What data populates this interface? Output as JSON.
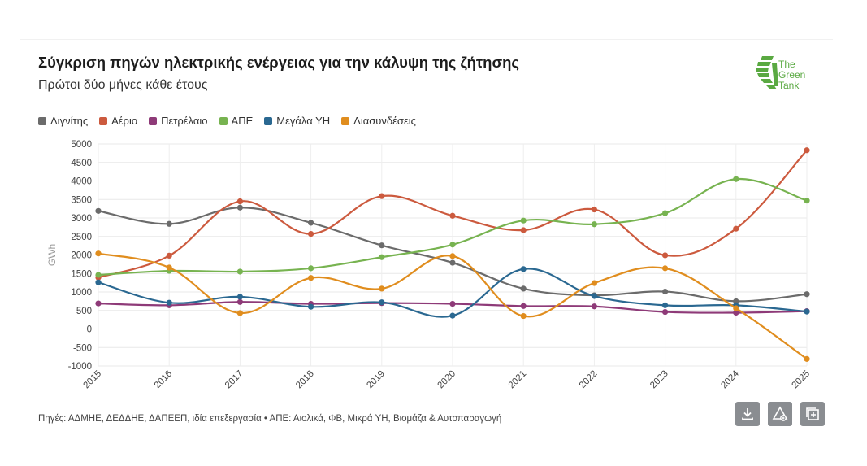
{
  "title": "Σύγκριση πηγών ηλεκτρικής ενέργειας για την κάλυψη της ζήτησης",
  "subtitle": "Πρώτοι δύο μήνες κάθε έτους",
  "logo_text": [
    "The",
    "Green",
    "Tank"
  ],
  "footer": "Πηγές: ΑΔΜΗΕ, ΔΕΔΔΗΕ, ΔΑΠΕΕΠ, ιδία επεξεργασία • ΑΠΕ: Αιολικά, ΦΒ, Μικρά ΥΗ, Βιομάζα & Αυτοπαραγωγή",
  "toolbar": {
    "download_icon": "download-icon",
    "share_icon": "share-icon",
    "expand_icon": "expand-icon"
  },
  "chart_data": {
    "type": "line",
    "ylabel": "GWh",
    "xlabel": "",
    "ylim": [
      -1000,
      5000
    ],
    "yticks": [
      -1000,
      -500,
      0,
      500,
      1000,
      1500,
      2000,
      2500,
      3000,
      3500,
      4000,
      4500,
      5000
    ],
    "grid": true,
    "legend_position": "top-left",
    "categories": [
      "2015",
      "2016",
      "2017",
      "2018",
      "2019",
      "2020",
      "2021",
      "2022",
      "2023",
      "2024",
      "2025"
    ],
    "series": [
      {
        "name": "Λιγνίτης",
        "color": "#6b6b6b",
        "values": [
          3190,
          2840,
          3280,
          2870,
          2260,
          1790,
          1090,
          910,
          1010,
          750,
          940
        ]
      },
      {
        "name": "Αέριο",
        "color": "#cc5a3e",
        "values": [
          1390,
          1980,
          3450,
          2570,
          3590,
          3060,
          2670,
          3230,
          1990,
          2710,
          4830
        ]
      },
      {
        "name": "Πετρέλαιο",
        "color": "#8e3a78",
        "values": [
          690,
          640,
          730,
          680,
          700,
          680,
          620,
          610,
          460,
          440,
          480
        ]
      },
      {
        "name": "ΑΠΕ",
        "color": "#77b350",
        "values": [
          1460,
          1570,
          1550,
          1640,
          1940,
          2280,
          2930,
          2830,
          3130,
          4050,
          3470
        ]
      },
      {
        "name": "Μεγάλα ΥΗ",
        "color": "#2a6891",
        "values": [
          1260,
          710,
          870,
          600,
          720,
          360,
          1620,
          890,
          640,
          640,
          470
        ]
      },
      {
        "name": "Διασυνδέσεις",
        "color": "#e08d1e",
        "values": [
          2040,
          1660,
          430,
          1380,
          1090,
          1970,
          350,
          1240,
          1640,
          560,
          -810
        ]
      }
    ]
  }
}
